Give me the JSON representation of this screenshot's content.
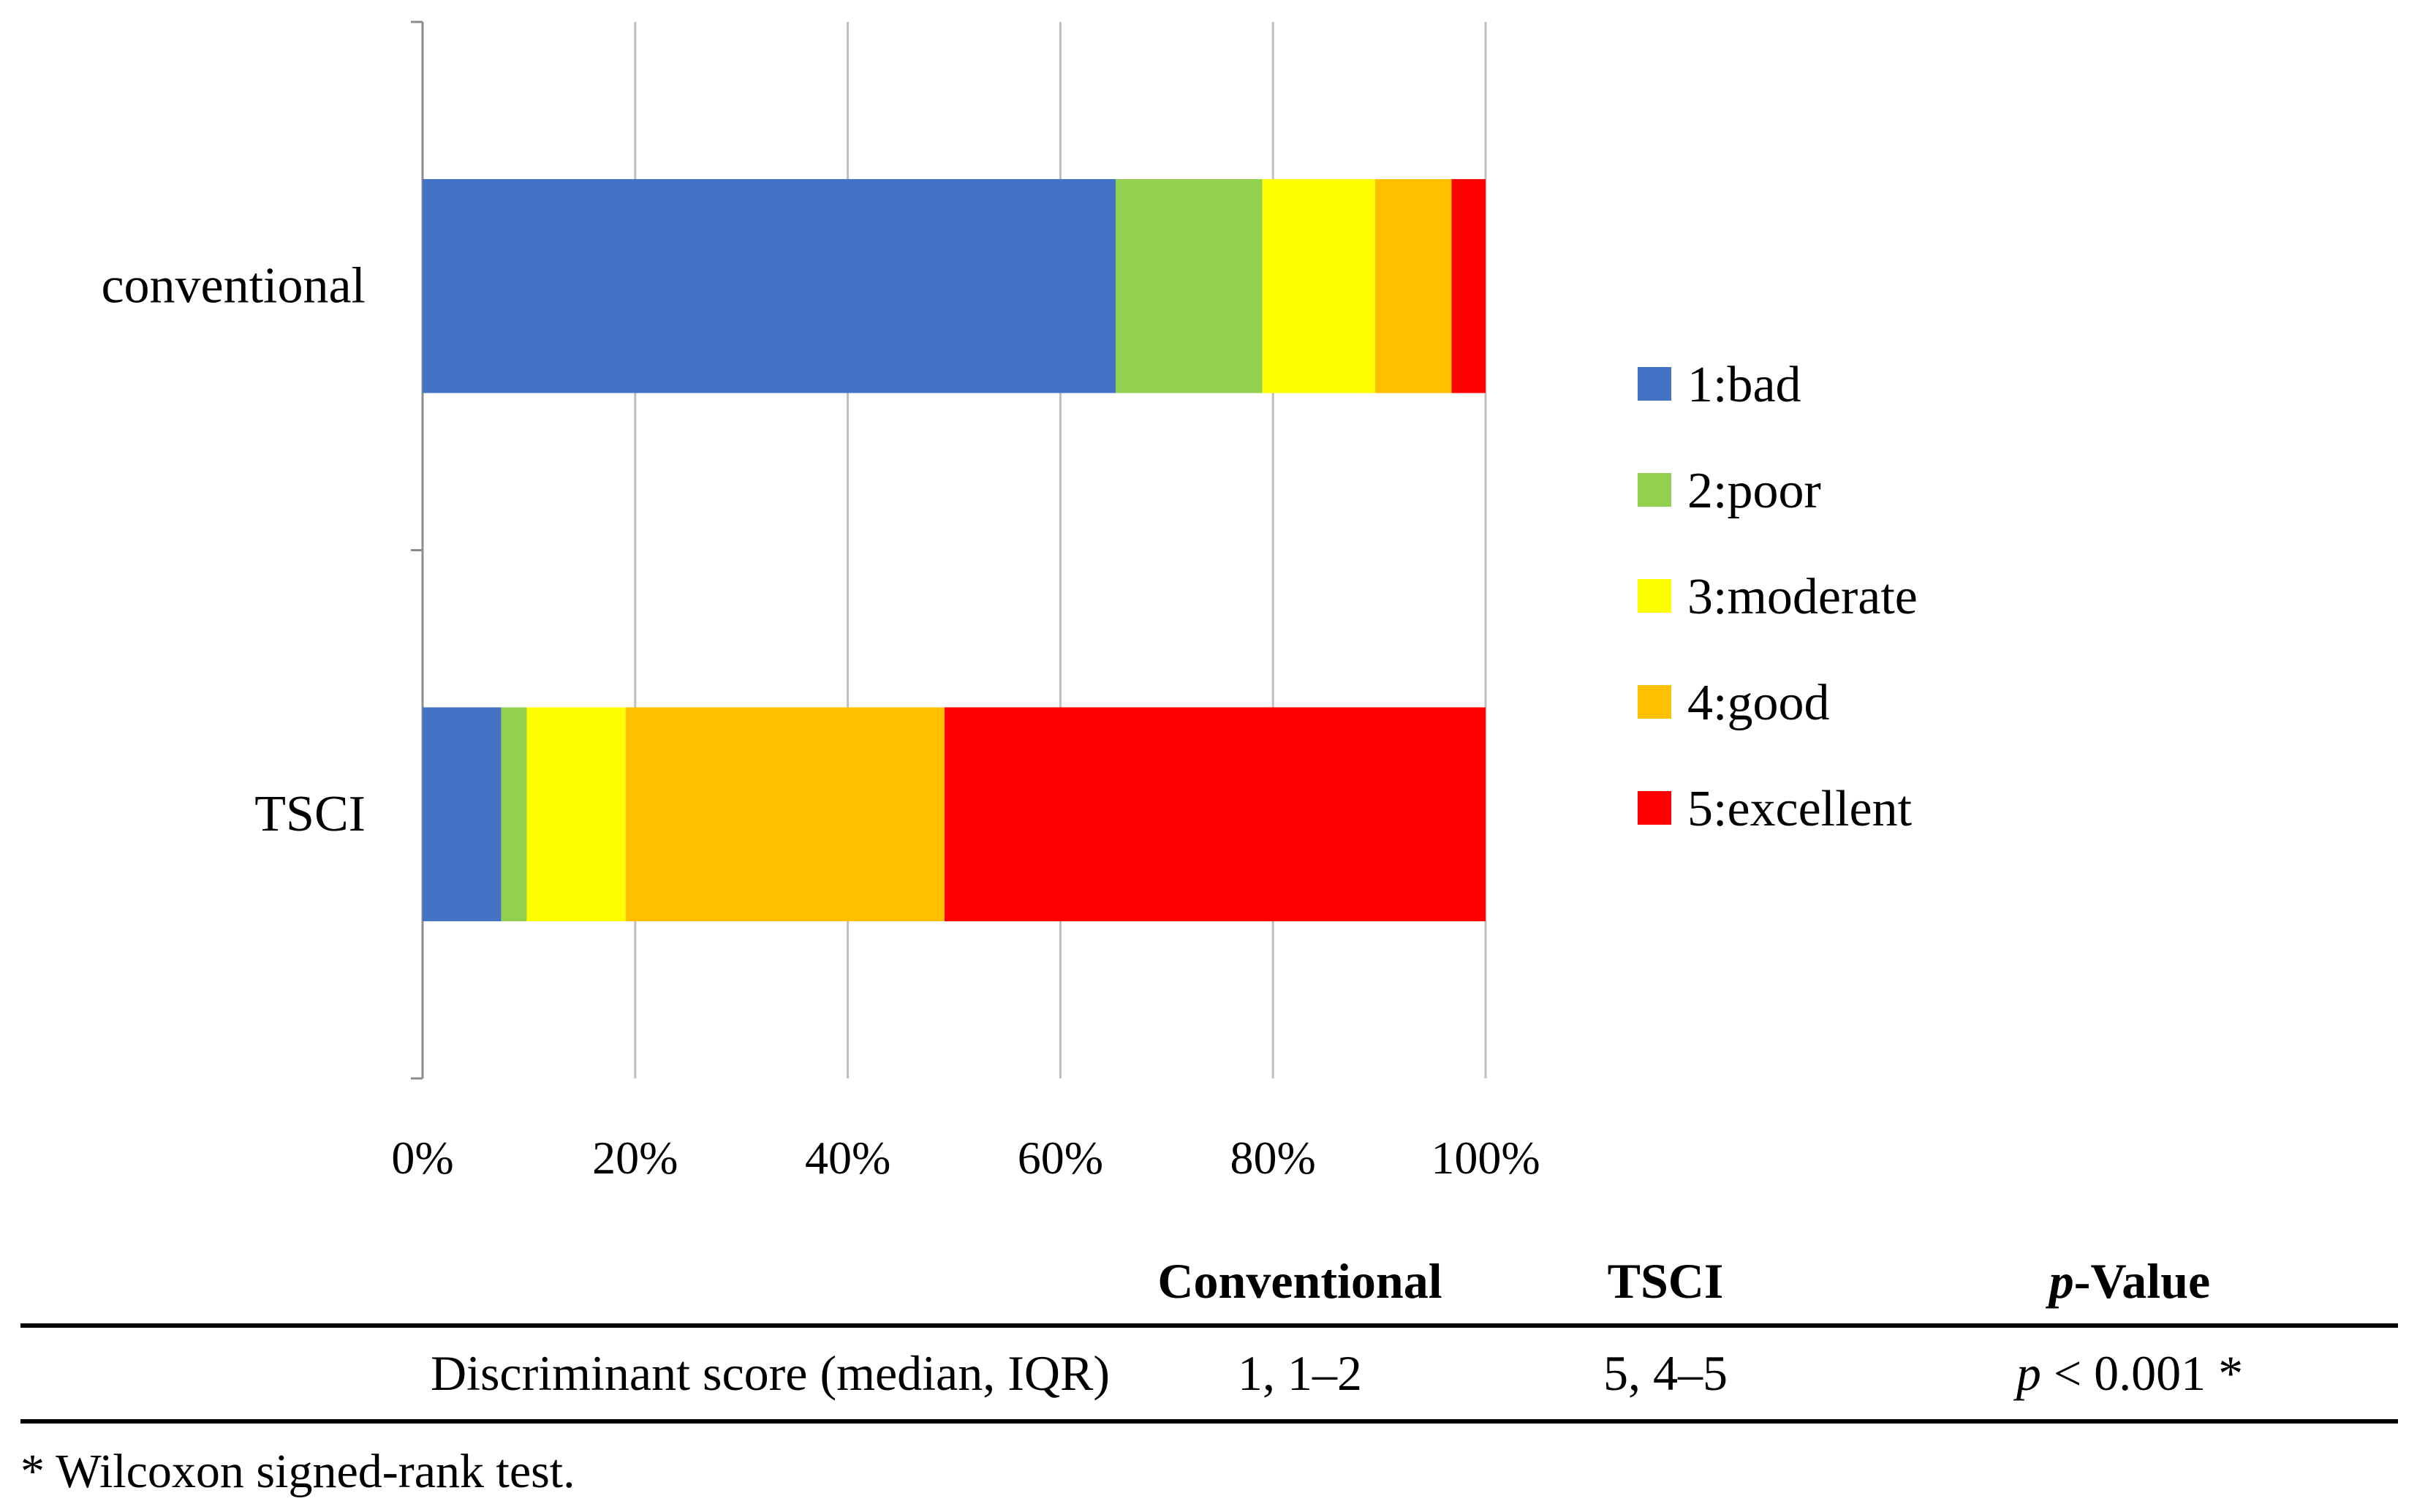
{
  "chart_data": {
    "type": "bar",
    "orientation": "horizontal",
    "stacked": true,
    "categories": [
      "conventional",
      "TSCI"
    ],
    "series": [
      {
        "name": "1:bad",
        "color": "#4472C4",
        "values": [
          65.2,
          7.4
        ]
      },
      {
        "name": "2:poor",
        "color": "#92D050",
        "values": [
          13.8,
          2.4
        ]
      },
      {
        "name": "3:moderate",
        "color": "#FFFF00",
        "values": [
          10.6,
          9.3
        ]
      },
      {
        "name": "4:good",
        "color": "#FFC000",
        "values": [
          7.2,
          30.0
        ]
      },
      {
        "name": "5:excellent",
        "color": "#FF0000",
        "values": [
          3.2,
          50.9
        ]
      }
    ],
    "xlim": [
      0,
      100
    ],
    "xticks": [
      "0%",
      "20%",
      "40%",
      "60%",
      "80%",
      "100%"
    ],
    "grid": true,
    "legend_position": "right",
    "title": "",
    "xlabel": "",
    "ylabel": ""
  },
  "table": {
    "headers": [
      "",
      "Conventional",
      "TSCI",
      "Value"
    ],
    "p_prefix": "p",
    "row": {
      "label": "Discriminant score (median, IQR)",
      "conventional": "1, 1–2",
      "tsci": "5, 4–5",
      "p_italic": "p",
      "p_rest": " < 0.001 *"
    }
  },
  "footnote": "* Wilcoxon signed-rank test."
}
